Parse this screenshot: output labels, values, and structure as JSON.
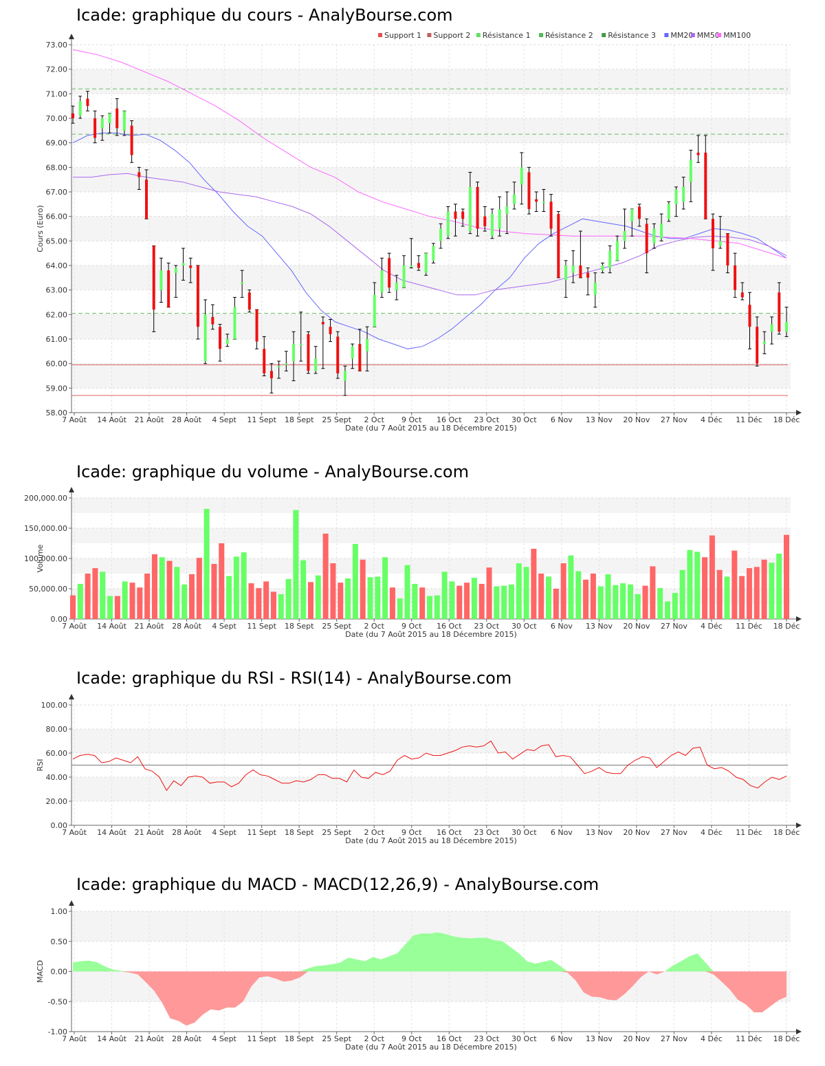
{
  "x_ticks": [
    "7 Août",
    "14 Août",
    "21 Août",
    "28 Août",
    "4 Sept",
    "11 Sept",
    "18 Sept",
    "25 Sept",
    "2 Oct",
    "9 Oct",
    "16 Oct",
    "23 Oct",
    "30 Oct",
    "6 Nov",
    "13 Nov",
    "20 Nov",
    "27 Nov",
    "4 Déc",
    "11 Déc",
    "18 Déc"
  ],
  "x_label": "Date (du 7 Août 2015 au 18 Décembre 2015)",
  "colors": {
    "up": "#66ff66",
    "down": "#ee1111",
    "vol_up": "#66ff66",
    "vol_down": "#ff6666",
    "mm20": "#6666ff",
    "mm50": "#aa66ee",
    "mm100": "#ff66ff",
    "support": "#e06060",
    "resistance": "#66bb66",
    "rsi": "#ee1111",
    "macd_pos": "#99ff99",
    "macd_neg": "#ff9999"
  },
  "price_chart": {
    "title": "Icade: graphique du cours - AnalyBourse.com",
    "ylabel": "Cours (Euro)",
    "legend": [
      {
        "label": "Support 1",
        "color": "#e05050"
      },
      {
        "label": "Support 2",
        "color": "#c06060"
      },
      {
        "label": "Résistance 1",
        "color": "#66dd66"
      },
      {
        "label": "Résistance 2",
        "color": "#55bb55"
      },
      {
        "label": "Résistance 3",
        "color": "#449944"
      },
      {
        "label": "MM20",
        "color": "#6666ff"
      },
      {
        "label": "MM50",
        "color": "#aa66ee"
      },
      {
        "label": "MM100",
        "color": "#ff66ff"
      }
    ],
    "y_ticks": [
      "58.00",
      "59.00",
      "60.00",
      "61.00",
      "62.00",
      "63.00",
      "64.00",
      "65.00",
      "66.00",
      "67.00",
      "68.00",
      "69.00",
      "70.00",
      "71.00",
      "72.00",
      "73.00"
    ]
  },
  "volume_chart": {
    "title": "Icade: graphique du volume - AnalyBourse.com",
    "ylabel": "Volume",
    "y_ticks": [
      "0.00",
      "50,000.00",
      "100,000.00",
      "150,000.00",
      "200,000.00"
    ]
  },
  "rsi_chart": {
    "title": "Icade: graphique du RSI - RSI(14) - AnalyBourse.com",
    "ylabel": "RSI",
    "y_ticks": [
      "0.00",
      "20.00",
      "40.00",
      "60.00",
      "80.00",
      "100.00"
    ]
  },
  "macd_chart": {
    "title": "Icade: graphique du MACD - MACD(12,26,9) - AnalyBourse.com",
    "ylabel": "MACD",
    "y_ticks": [
      "-1.00",
      "-0.50",
      "0.00",
      "0.50",
      "1.00"
    ]
  },
  "chart_data": [
    {
      "type": "candlestick",
      "title": "Icade: graphique du cours - AnalyBourse.com",
      "xlabel": "Date (du 7 Août 2015 au 18 Décembre 2015)",
      "ylabel": "Cours (Euro)",
      "ylim": [
        58,
        73
      ],
      "x_start": "7 Août",
      "x_end": "18 Déc",
      "ohlc": [
        [
          70.2,
          70.5,
          69.8,
          70.0
        ],
        [
          70.1,
          70.9,
          70.0,
          70.7
        ],
        [
          70.8,
          71.1,
          70.3,
          70.5
        ],
        [
          70.0,
          70.3,
          69.0,
          69.2
        ],
        [
          69.6,
          70.1,
          69.1,
          70.0
        ],
        [
          69.8,
          70.2,
          69.4,
          70.2
        ],
        [
          70.4,
          70.8,
          69.3,
          69.6
        ],
        [
          69.5,
          70.3,
          69.3,
          70.3
        ],
        [
          69.7,
          69.9,
          68.2,
          68.5
        ],
        [
          67.8,
          68.0,
          67.1,
          67.6
        ],
        [
          67.5,
          67.9,
          65.9,
          65.9
        ],
        [
          64.8,
          64.8,
          61.3,
          62.2
        ],
        [
          63.0,
          64.3,
          62.5,
          63.8
        ],
        [
          63.8,
          64.1,
          62.3,
          62.3
        ],
        [
          63.7,
          64.0,
          62.7,
          63.9
        ],
        [
          64.0,
          64.7,
          63.4,
          64.1
        ],
        [
          64.0,
          64.3,
          63.3,
          63.9
        ],
        [
          64.0,
          64.0,
          61.0,
          61.5
        ],
        [
          60.1,
          62.6,
          60.0,
          62.0
        ],
        [
          61.9,
          62.4,
          61.4,
          61.6
        ],
        [
          61.5,
          61.6,
          60.1,
          60.6
        ],
        [
          60.8,
          61.2,
          60.7,
          61.0
        ],
        [
          61.0,
          62.7,
          61.0,
          62.3
        ],
        [
          63.3,
          63.8,
          62.7,
          63.3
        ],
        [
          62.9,
          63.0,
          62.1,
          62.2
        ],
        [
          62.2,
          62.2,
          60.6,
          60.9
        ],
        [
          60.6,
          61.1,
          59.5,
          59.6
        ],
        [
          59.7,
          60.0,
          58.8,
          59.4
        ],
        [
          59.9,
          60.1,
          59.4,
          59.9
        ],
        [
          60.0,
          60.5,
          59.7,
          60.0
        ],
        [
          60.1,
          61.3,
          59.3,
          60.8
        ],
        [
          60.8,
          62.1,
          60.1,
          60.8
        ],
        [
          61.2,
          61.3,
          59.6,
          59.7
        ],
        [
          59.7,
          60.7,
          59.6,
          60.2
        ],
        [
          61.7,
          61.9,
          59.8,
          61.6
        ],
        [
          61.5,
          61.8,
          60.9,
          61.2
        ],
        [
          61.1,
          61.3,
          59.4,
          59.6
        ],
        [
          59.3,
          59.9,
          58.7,
          59.7
        ],
        [
          60.2,
          60.8,
          59.8,
          60.7
        ],
        [
          60.8,
          61.4,
          59.7,
          59.7
        ],
        [
          60.5,
          61.5,
          59.7,
          61.0
        ],
        [
          61.5,
          63.3,
          61.5,
          62.8
        ],
        [
          62.9,
          64.3,
          62.7,
          63.8
        ],
        [
          64.3,
          64.5,
          62.9,
          63.1
        ],
        [
          63.0,
          63.6,
          62.6,
          63.3
        ],
        [
          63.1,
          64.4,
          63.1,
          64.0
        ],
        [
          64.0,
          65.1,
          63.9,
          64.0
        ],
        [
          64.1,
          64.4,
          63.8,
          63.9
        ],
        [
          63.7,
          64.5,
          63.6,
          64.5
        ],
        [
          64.2,
          64.9,
          64.1,
          64.8
        ],
        [
          65.0,
          65.7,
          64.7,
          65.5
        ],
        [
          65.2,
          66.4,
          65.1,
          66.2
        ],
        [
          66.2,
          66.5,
          65.2,
          65.9
        ],
        [
          66.2,
          66.3,
          65.6,
          65.9
        ],
        [
          65.4,
          67.8,
          65.3,
          67.2
        ],
        [
          67.2,
          67.4,
          65.2,
          65.5
        ],
        [
          66.0,
          66.4,
          65.4,
          65.6
        ],
        [
          65.2,
          66.3,
          65.1,
          66.1
        ],
        [
          65.5,
          66.8,
          65.2,
          66.3
        ],
        [
          66.1,
          67.0,
          65.3,
          66.4
        ],
        [
          66.5,
          67.4,
          66.3,
          66.9
        ],
        [
          67.3,
          68.6,
          66.5,
          68.0
        ],
        [
          67.8,
          68.0,
          66.1,
          66.3
        ],
        [
          66.7,
          67.0,
          66.2,
          66.6
        ],
        [
          66.6,
          67.1,
          66.2,
          66.6
        ],
        [
          66.6,
          66.9,
          65.2,
          65.5
        ],
        [
          66.1,
          66.2,
          63.5,
          63.5
        ],
        [
          63.4,
          64.2,
          62.7,
          64.0
        ],
        [
          63.7,
          64.6,
          63.3,
          64.0
        ],
        [
          64.0,
          65.4,
          63.5,
          63.5
        ],
        [
          63.7,
          63.9,
          62.8,
          63.5
        ],
        [
          62.8,
          63.7,
          62.3,
          63.3
        ],
        [
          63.8,
          64.1,
          63.7,
          64.0
        ],
        [
          63.9,
          64.8,
          63.7,
          64.6
        ],
        [
          64.2,
          65.2,
          64.2,
          65.0
        ],
        [
          65.0,
          66.3,
          64.7,
          65.4
        ],
        [
          65.8,
          66.3,
          65.2,
          66.3
        ],
        [
          66.4,
          66.5,
          65.6,
          65.9
        ],
        [
          65.7,
          65.9,
          63.7,
          64.5
        ],
        [
          64.9,
          65.7,
          64.7,
          65.5
        ],
        [
          65.1,
          66.1,
          65.0,
          65.7
        ],
        [
          65.9,
          66.6,
          65.8,
          66.5
        ],
        [
          66.5,
          67.2,
          66.0,
          67.1
        ],
        [
          66.6,
          67.6,
          66.3,
          67.2
        ],
        [
          67.4,
          68.7,
          66.6,
          68.3
        ],
        [
          68.6,
          69.3,
          68.2,
          68.5
        ],
        [
          68.6,
          69.3,
          65.9,
          65.9
        ],
        [
          65.9,
          66.1,
          63.8,
          64.7
        ],
        [
          64.8,
          66.0,
          64.7,
          65.0
        ],
        [
          65.3,
          65.3,
          63.7,
          64.0
        ],
        [
          64.0,
          64.5,
          62.7,
          63.0
        ],
        [
          62.9,
          63.3,
          62.6,
          62.7
        ],
        [
          62.4,
          62.9,
          60.6,
          61.5
        ],
        [
          61.5,
          61.9,
          59.9,
          60.0
        ],
        [
          60.8,
          61.3,
          60.4,
          60.9
        ],
        [
          61.3,
          61.9,
          60.8,
          61.6
        ],
        [
          62.9,
          63.3,
          61.2,
          61.3
        ],
        [
          61.3,
          62.3,
          61.1,
          61.7
        ]
      ],
      "support_1": 59.95,
      "support_2": 58.7,
      "resistance_1": 62.05,
      "resistance_2": 69.35,
      "resistance_3": 71.2,
      "series": [
        {
          "name": "MM20",
          "values": [
            69.0,
            69.3,
            69.4,
            69.4,
            69.3,
            69.35,
            69.1,
            68.7,
            68.2,
            67.5,
            66.9,
            66.2,
            65.6,
            65.2,
            64.5,
            63.8,
            62.9,
            62.2,
            61.7,
            61.5,
            61.3,
            61.0,
            60.8,
            60.6,
            60.7,
            61.0,
            61.4,
            61.9,
            62.4,
            63.0,
            63.5,
            64.3,
            64.9,
            65.3,
            65.6,
            65.9,
            65.8,
            65.7,
            65.6,
            65.4,
            65.2,
            65.1,
            65.1,
            65.3,
            65.5,
            65.45,
            65.3,
            65.1,
            64.7,
            64.3
          ]
        },
        {
          "name": "MM50",
          "values": [
            67.6,
            67.6,
            67.7,
            67.75,
            67.6,
            67.5,
            67.4,
            67.2,
            67.0,
            66.9,
            66.8,
            66.6,
            66.4,
            66.1,
            65.6,
            65.0,
            64.4,
            63.8,
            63.4,
            63.2,
            63.0,
            62.8,
            62.8,
            63.0,
            63.1,
            63.2,
            63.3,
            63.5,
            63.7,
            63.9,
            64.1,
            64.4,
            64.8,
            65.0,
            65.15,
            65.2,
            65.15,
            65.05,
            64.8,
            64.4
          ]
        },
        {
          "name": "MM100",
          "values": [
            72.8,
            72.6,
            72.3,
            71.9,
            71.5,
            71.0,
            70.5,
            69.9,
            69.2,
            68.6,
            68.0,
            67.6,
            67.0,
            66.6,
            66.3,
            66.0,
            65.8,
            65.55,
            65.4,
            65.3,
            65.25,
            65.2,
            65.2,
            65.2,
            65.2,
            65.15,
            65.1,
            65.0,
            64.9,
            64.6,
            64.3
          ]
        }
      ]
    },
    {
      "type": "bar",
      "title": "Icade: graphique du volume - AnalyBourse.com",
      "xlabel": "Date (du 7 Août 2015 au 18 Décembre 2015)",
      "ylabel": "Volume",
      "ylim": [
        0,
        200000
      ],
      "values": [
        39000,
        58000,
        75000,
        84000,
        78000,
        38000,
        38000,
        62000,
        60000,
        52000,
        75000,
        107000,
        102000,
        96000,
        86000,
        57000,
        74000,
        101000,
        182000,
        91000,
        125000,
        71000,
        103000,
        110000,
        59000,
        51000,
        62000,
        45000,
        41000,
        66000,
        180000,
        97000,
        61000,
        72000,
        141000,
        92000,
        60000,
        67000,
        124000,
        98000,
        69000,
        70000,
        102000,
        52000,
        34000,
        89000,
        58000,
        52000,
        38000,
        39000,
        78000,
        62000,
        55000,
        60000,
        68000,
        58000,
        85000,
        54000,
        55000,
        57000,
        92000,
        86000,
        116000,
        75000,
        70000,
        50000,
        92000,
        105000,
        79000,
        65000,
        75000,
        54000,
        74000,
        56000,
        59000,
        57000,
        41000,
        55000,
        87000,
        51000,
        29000,
        43000,
        81000,
        114000,
        111000,
        102000,
        138000,
        81000,
        70000,
        113000,
        71000,
        84000,
        86000,
        98000,
        93000,
        108000,
        139000
      ]
    },
    {
      "type": "line",
      "title": "Icade: graphique du RSI - RSI(14) - AnalyBourse.com",
      "xlabel": "Date (du 7 Août 2015 au 18 Décembre 2015)",
      "ylabel": "RSI",
      "ylim": [
        0,
        100
      ],
      "reference_line": 50,
      "values": [
        55,
        58,
        59,
        58,
        52,
        53,
        56,
        54,
        52,
        57,
        47,
        45,
        40,
        29,
        37,
        33,
        40,
        41,
        40,
        35,
        36,
        36,
        32,
        35,
        42,
        46,
        42,
        41,
        38,
        35,
        35,
        37,
        36,
        38,
        42,
        42,
        39,
        39,
        36,
        46,
        40,
        39,
        44,
        42,
        45,
        54,
        58,
        55,
        56,
        60,
        58,
        58,
        60,
        62,
        65,
        66,
        65,
        66,
        70,
        60,
        61,
        55,
        59,
        63,
        62,
        66,
        67,
        57,
        58,
        57,
        50,
        43,
        45,
        48,
        44,
        43,
        43,
        50,
        54,
        57,
        56,
        48,
        53,
        58,
        61,
        58,
        64,
        65,
        50,
        47,
        48,
        45,
        40,
        38,
        33,
        31,
        36,
        40,
        38,
        41
      ]
    },
    {
      "type": "area",
      "title": "Icade: graphique du MACD - MACD(12,26,9) - AnalyBourse.com",
      "xlabel": "Date (du 7 Août 2015 au 18 Décembre 2015)",
      "ylabel": "MACD",
      "ylim": [
        -1,
        1
      ],
      "values": [
        0.15,
        0.17,
        0.18,
        0.15,
        0.08,
        0.03,
        0.01,
        -0.02,
        -0.05,
        -0.18,
        -0.32,
        -0.52,
        -0.78,
        -0.82,
        -0.9,
        -0.85,
        -0.72,
        -0.63,
        -0.65,
        -0.6,
        -0.6,
        -0.5,
        -0.25,
        -0.1,
        -0.08,
        -0.12,
        -0.17,
        -0.15,
        -0.1,
        0.05,
        0.09,
        0.1,
        0.12,
        0.15,
        0.23,
        0.2,
        0.17,
        0.24,
        0.2,
        0.25,
        0.3,
        0.45,
        0.6,
        0.63,
        0.63,
        0.65,
        0.62,
        0.58,
        0.56,
        0.55,
        0.56,
        0.56,
        0.52,
        0.5,
        0.4,
        0.3,
        0.17,
        0.13,
        0.16,
        0.19,
        0.1,
        -0.02,
        -0.15,
        -0.35,
        -0.42,
        -0.43,
        -0.47,
        -0.48,
        -0.38,
        -0.25,
        -0.1,
        0.0,
        -0.05,
        0.0,
        0.1,
        0.17,
        0.25,
        0.3,
        0.15,
        -0.05,
        -0.17,
        -0.3,
        -0.47,
        -0.55,
        -0.68,
        -0.68,
        -0.58,
        -0.48,
        -0.42
      ]
    }
  ]
}
